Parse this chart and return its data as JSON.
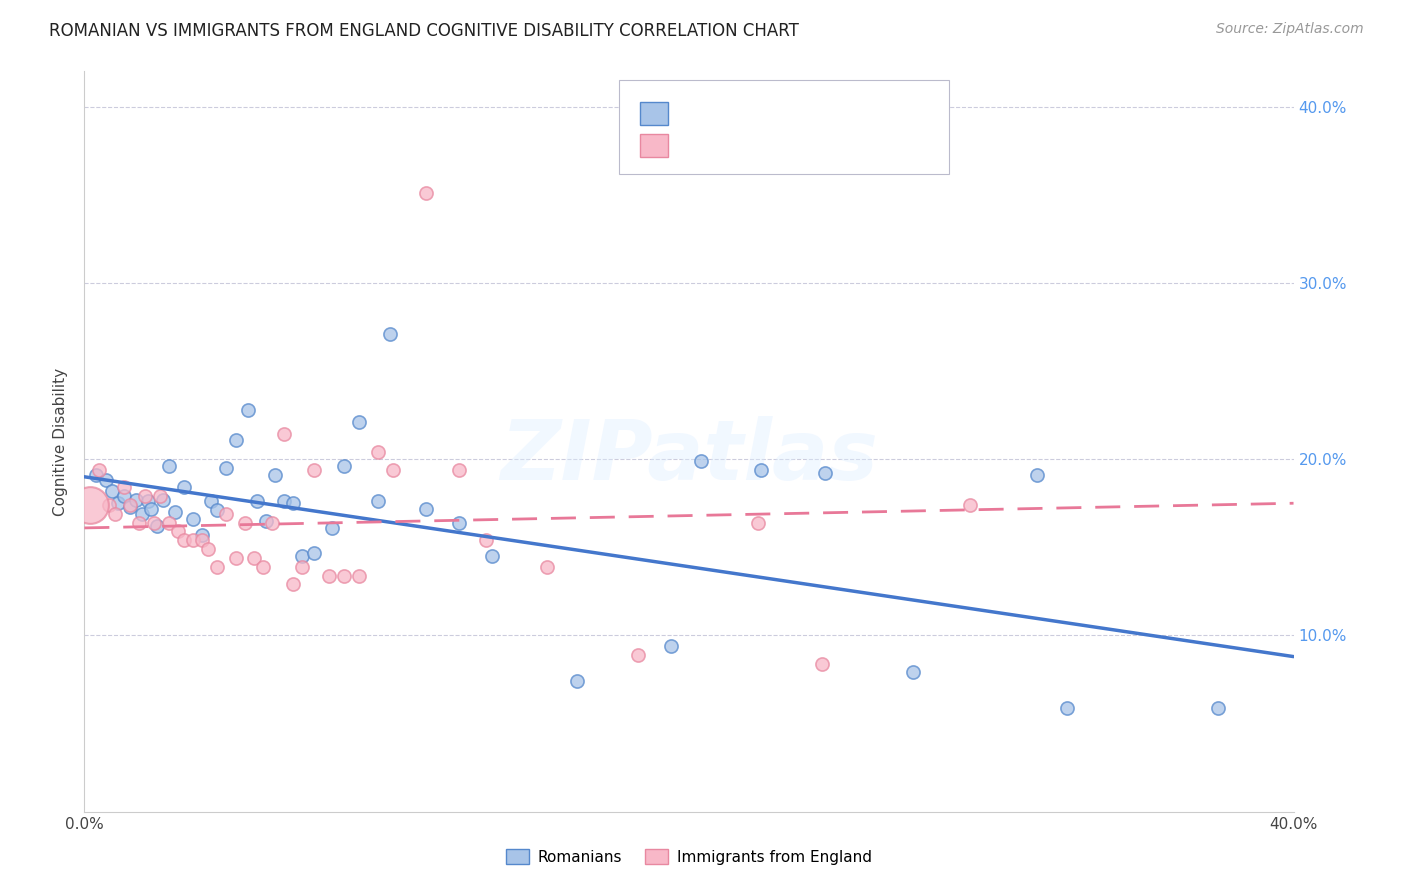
{
  "title": "ROMANIAN VS IMMIGRANTS FROM ENGLAND COGNITIVE DISABILITY CORRELATION CHART",
  "source": "Source: ZipAtlas.com",
  "ylabel": "Cognitive Disability",
  "watermark": "ZIPatlas",
  "xlim": [
    0.0,
    0.4
  ],
  "ylim": [
    0.0,
    0.42
  ],
  "yticks": [
    0.1,
    0.2,
    0.3,
    0.4
  ],
  "ytick_labels": [
    "10.0%",
    "20.0%",
    "30.0%",
    "40.0%"
  ],
  "blue_face": "#A8C4E8",
  "blue_edge": "#5588CC",
  "pink_face": "#F8B8C8",
  "pink_edge": "#E888A0",
  "line_blue": "#4477CC",
  "line_pink": "#E87898",
  "romanians_x": [
    0.004,
    0.007,
    0.009,
    0.011,
    0.013,
    0.015,
    0.017,
    0.019,
    0.021,
    0.022,
    0.024,
    0.026,
    0.028,
    0.03,
    0.033,
    0.036,
    0.039,
    0.042,
    0.044,
    0.047,
    0.05,
    0.054,
    0.057,
    0.06,
    0.063,
    0.066,
    0.069,
    0.072,
    0.076,
    0.082,
    0.086,
    0.091,
    0.097,
    0.101,
    0.113,
    0.124,
    0.135,
    0.163,
    0.194,
    0.204,
    0.224,
    0.245,
    0.274,
    0.315,
    0.325,
    0.375
  ],
  "romanians_y": [
    0.191,
    0.188,
    0.182,
    0.175,
    0.179,
    0.173,
    0.177,
    0.169,
    0.176,
    0.172,
    0.162,
    0.177,
    0.196,
    0.17,
    0.184,
    0.166,
    0.157,
    0.176,
    0.171,
    0.195,
    0.211,
    0.228,
    0.176,
    0.165,
    0.191,
    0.176,
    0.175,
    0.145,
    0.147,
    0.161,
    0.196,
    0.221,
    0.176,
    0.271,
    0.172,
    0.164,
    0.145,
    0.074,
    0.094,
    0.199,
    0.194,
    0.192,
    0.079,
    0.191,
    0.059,
    0.059
  ],
  "england_x": [
    0.002,
    0.005,
    0.008,
    0.01,
    0.013,
    0.015,
    0.018,
    0.02,
    0.023,
    0.025,
    0.028,
    0.031,
    0.033,
    0.036,
    0.039,
    0.041,
    0.044,
    0.047,
    0.05,
    0.053,
    0.056,
    0.059,
    0.062,
    0.066,
    0.069,
    0.072,
    0.076,
    0.081,
    0.086,
    0.091,
    0.097,
    0.102,
    0.113,
    0.124,
    0.133,
    0.153,
    0.183,
    0.223,
    0.244,
    0.293
  ],
  "england_y": [
    0.174,
    0.194,
    0.174,
    0.169,
    0.184,
    0.174,
    0.164,
    0.179,
    0.164,
    0.179,
    0.164,
    0.159,
    0.154,
    0.154,
    0.154,
    0.149,
    0.139,
    0.169,
    0.144,
    0.164,
    0.144,
    0.139,
    0.164,
    0.214,
    0.129,
    0.139,
    0.194,
    0.134,
    0.134,
    0.134,
    0.204,
    0.194,
    0.351,
    0.194,
    0.154,
    0.139,
    0.089,
    0.164,
    0.084,
    0.174
  ],
  "england_sizes": [
    700,
    80,
    80,
    80,
    80,
    80,
    80,
    80,
    80,
    80,
    80,
    80,
    80,
    80,
    80,
    80,
    80,
    80,
    80,
    80,
    80,
    80,
    80,
    80,
    80,
    80,
    80,
    80,
    80,
    80,
    80,
    80,
    80,
    80,
    80,
    80,
    80,
    80,
    80,
    80
  ],
  "blue_line_x0": 0.0,
  "blue_line_y0": 0.19,
  "blue_line_x1": 0.4,
  "blue_line_y1": 0.088,
  "pink_line_x0": 0.0,
  "pink_line_y0": 0.161,
  "pink_line_x1": 0.4,
  "pink_line_y1": 0.175
}
